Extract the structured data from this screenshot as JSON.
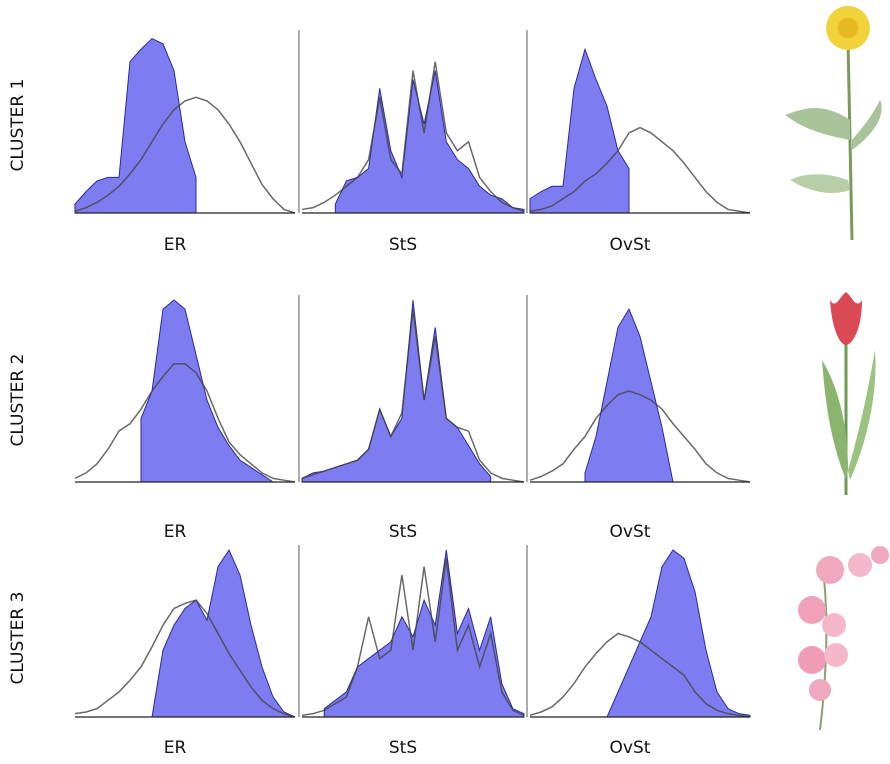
{
  "clusters": [
    "CLUSTER 1",
    "CLUSTER 2",
    "CLUSTER 3"
  ],
  "chart_data": [
    {
      "type": "area",
      "title": "ER",
      "ylim": [
        0,
        100
      ],
      "series": [
        {
          "kind": "area",
          "color": "#6666ee",
          "values": [
            5,
            12,
            18,
            20,
            20,
            85,
            92,
            98,
            95,
            80,
            40,
            20,
            null,
            null,
            null,
            null,
            null,
            null,
            null,
            null,
            null
          ]
        },
        {
          "kind": "line",
          "color": "#444444",
          "values": [
            1,
            3,
            6,
            10,
            15,
            22,
            30,
            40,
            50,
            58,
            63,
            65,
            63,
            58,
            50,
            40,
            28,
            16,
            8,
            2,
            0
          ]
        }
      ]
    },
    {
      "type": "area",
      "title": "StS",
      "ylim": [
        0,
        100
      ],
      "series": [
        {
          "kind": "area",
          "color": "#6666ee",
          "values": [
            null,
            null,
            null,
            5,
            18,
            20,
            25,
            70,
            35,
            20,
            75,
            50,
            80,
            40,
            30,
            25,
            15,
            10,
            8,
            3,
            2
          ]
        },
        {
          "kind": "line",
          "color": "#444444",
          "values": [
            2,
            3,
            6,
            10,
            15,
            20,
            30,
            65,
            30,
            22,
            80,
            45,
            85,
            45,
            35,
            40,
            20,
            12,
            6,
            3,
            1
          ]
        }
      ]
    },
    {
      "type": "area",
      "title": "OvSt",
      "ylim": [
        0,
        100
      ],
      "series": [
        {
          "kind": "area",
          "color": "#6666ee",
          "values": [
            8,
            12,
            15,
            15,
            70,
            92,
            75,
            60,
            35,
            25,
            null,
            null,
            null,
            null,
            null,
            null,
            null,
            null,
            null,
            null,
            null
          ]
        },
        {
          "kind": "line",
          "color": "#444444",
          "values": [
            1,
            2,
            4,
            8,
            12,
            18,
            22,
            28,
            35,
            45,
            48,
            45,
            40,
            35,
            28,
            20,
            12,
            6,
            2,
            1,
            0
          ]
        }
      ]
    },
    {
      "type": "area",
      "title": "ER",
      "ylim": [
        0,
        100
      ],
      "series": [
        {
          "kind": "area",
          "color": "#6666ee",
          "values": [
            null,
            null,
            null,
            null,
            null,
            null,
            35,
            50,
            95,
            100,
            95,
            70,
            45,
            30,
            20,
            12,
            8,
            4,
            0,
            null,
            null
          ]
        },
        {
          "kind": "line",
          "color": "#444444",
          "values": [
            2,
            5,
            10,
            18,
            28,
            32,
            40,
            50,
            58,
            65,
            65,
            60,
            50,
            35,
            22,
            15,
            10,
            5,
            2,
            1,
            0
          ]
        }
      ]
    },
    {
      "type": "area",
      "title": "StS",
      "ylim": [
        0,
        100
      ],
      "series": [
        {
          "kind": "area",
          "color": "#6666ee",
          "values": [
            2,
            5,
            6,
            8,
            10,
            12,
            18,
            40,
            25,
            35,
            100,
            45,
            85,
            35,
            30,
            20,
            10,
            3,
            null,
            null,
            null
          ]
        },
        {
          "kind": "line",
          "color": "#444444",
          "values": [
            2,
            4,
            6,
            8,
            10,
            12,
            18,
            40,
            25,
            38,
            95,
            45,
            80,
            35,
            30,
            28,
            12,
            5,
            2,
            1,
            0
          ]
        }
      ]
    },
    {
      "type": "area",
      "title": "OvSt",
      "ylim": [
        0,
        100
      ],
      "series": [
        {
          "kind": "area",
          "color": "#6666ee",
          "values": [
            null,
            null,
            null,
            null,
            null,
            5,
            25,
            55,
            85,
            95,
            80,
            55,
            30,
            0,
            null,
            null,
            null,
            null,
            null,
            null,
            null
          ]
        },
        {
          "kind": "line",
          "color": "#444444",
          "values": [
            1,
            3,
            6,
            10,
            18,
            25,
            35,
            42,
            48,
            50,
            48,
            45,
            40,
            32,
            25,
            18,
            10,
            5,
            2,
            1,
            0
          ]
        }
      ]
    },
    {
      "type": "area",
      "title": "ER",
      "ylim": [
        0,
        100
      ],
      "series": [
        {
          "kind": "area",
          "color": "#6666ee",
          "values": [
            null,
            null,
            null,
            null,
            null,
            null,
            null,
            0,
            40,
            55,
            65,
            70,
            58,
            90,
            100,
            85,
            55,
            30,
            12,
            3,
            0
          ]
        },
        {
          "kind": "line",
          "color": "#444444",
          "values": [
            2,
            3,
            5,
            10,
            15,
            22,
            30,
            42,
            55,
            65,
            68,
            70,
            62,
            50,
            38,
            28,
            18,
            10,
            5,
            2,
            0
          ]
        }
      ]
    },
    {
      "type": "area",
      "title": "StS",
      "ylim": [
        0,
        100
      ],
      "series": [
        {
          "kind": "area",
          "color": "#6666ee",
          "values": [
            null,
            null,
            5,
            10,
            15,
            30,
            35,
            40,
            45,
            60,
            48,
            70,
            55,
            100,
            50,
            65,
            40,
            60,
            20,
            5,
            2
          ]
        },
        {
          "kind": "line",
          "color": "#444444",
          "values": [
            1,
            2,
            4,
            8,
            12,
            30,
            60,
            35,
            40,
            85,
            40,
            90,
            45,
            95,
            40,
            55,
            30,
            50,
            15,
            4,
            1
          ]
        }
      ]
    },
    {
      "type": "area",
      "title": "OvSt",
      "ylim": [
        0,
        100
      ],
      "series": [
        {
          "kind": "area",
          "color": "#6666ee",
          "values": [
            null,
            null,
            null,
            null,
            null,
            null,
            null,
            0,
            15,
            30,
            45,
            60,
            90,
            100,
            95,
            75,
            40,
            15,
            5,
            2,
            1
          ]
        },
        {
          "kind": "line",
          "color": "#444444",
          "values": [
            1,
            3,
            6,
            12,
            20,
            30,
            38,
            45,
            50,
            48,
            45,
            40,
            35,
            30,
            25,
            15,
            8,
            4,
            2,
            1,
            0
          ]
        }
      ]
    }
  ]
}
